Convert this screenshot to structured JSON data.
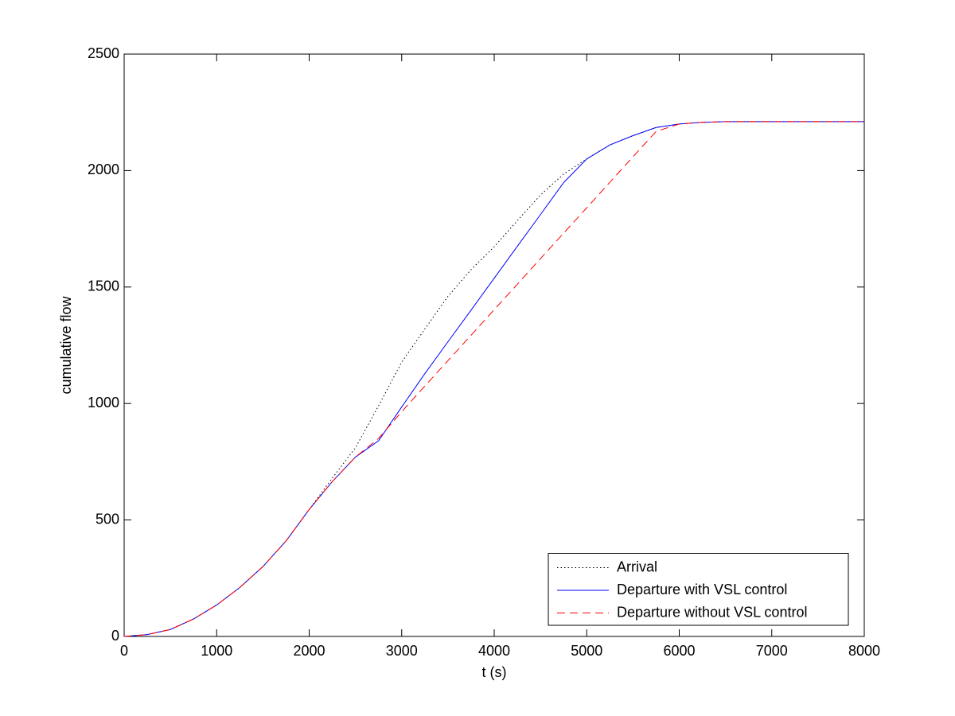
{
  "chart_data": {
    "type": "line",
    "xlabel": "t (s)",
    "ylabel": "cumulative flow",
    "x": [
      0,
      250,
      500,
      750,
      1000,
      1250,
      1500,
      1750,
      2000,
      2250,
      2500,
      2750,
      3000,
      3250,
      3500,
      3750,
      4000,
      4250,
      4500,
      4750,
      5000,
      5250,
      5500,
      5750,
      6000,
      6250,
      6500,
      6750,
      7000,
      7250,
      7500,
      7750,
      8000
    ],
    "series": [
      {
        "name": "Arrival",
        "color": "#000000",
        "style": "dotted",
        "values": [
          0,
          8,
          30,
          75,
          135,
          210,
          300,
          410,
          545,
          680,
          810,
          990,
          1178,
          1320,
          1460,
          1575,
          1673,
          1785,
          1895,
          1985,
          2050,
          2110,
          2150,
          2185,
          2200,
          2207,
          2210,
          2210,
          2210,
          2210,
          2210,
          2210,
          2210
        ]
      },
      {
        "name": "Departure with VSL control",
        "color": "#0000ff",
        "style": "solid",
        "values": [
          0,
          8,
          30,
          75,
          135,
          210,
          300,
          410,
          545,
          665,
          770,
          840,
          985,
          1128,
          1265,
          1401,
          1538,
          1675,
          1811,
          1948,
          2050,
          2110,
          2150,
          2185,
          2200,
          2207,
          2210,
          2210,
          2210,
          2210,
          2210,
          2210,
          2210
        ]
      },
      {
        "name": "Departure without VSL control",
        "color": "#ff0000",
        "style": "dashed",
        "values": [
          0,
          8,
          30,
          75,
          135,
          210,
          300,
          410,
          545,
          665,
          770,
          850,
          965,
          1075,
          1184,
          1293,
          1403,
          1512,
          1622,
          1731,
          1840,
          1950,
          2059,
          2168,
          2200,
          2207,
          2210,
          2210,
          2210,
          2210,
          2210,
          2210,
          2210
        ]
      }
    ],
    "xlim": [
      0,
      8000
    ],
    "xticks": [
      0,
      1000,
      2000,
      3000,
      4000,
      5000,
      6000,
      7000,
      8000
    ],
    "ylim": [
      0,
      2500
    ],
    "yticks": [
      0,
      500,
      1000,
      1500,
      2000,
      2500
    ],
    "legend": "lower right",
    "grid": false
  }
}
